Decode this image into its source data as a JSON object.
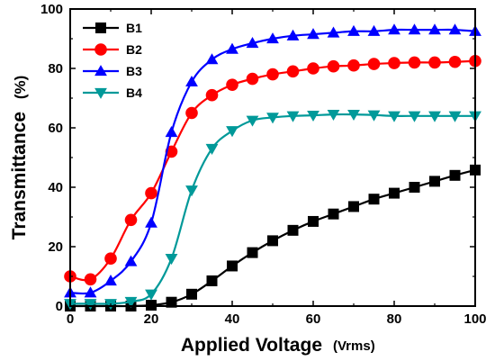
{
  "chart_data": {
    "type": "line",
    "title": "",
    "xlabel": "Applied Voltage",
    "xlabel_unit": "(Vrms)",
    "ylabel": "Transmittance",
    "ylabel_unit": "(%)",
    "xlim": [
      0,
      100
    ],
    "ylim": [
      0,
      100
    ],
    "x_ticks": [
      0,
      20,
      40,
      60,
      80,
      100
    ],
    "y_ticks": [
      0,
      20,
      40,
      60,
      80,
      100
    ],
    "x_tick_labels": [
      "0",
      "20",
      "40",
      "60",
      "80",
      "100"
    ],
    "y_tick_labels": [
      "0",
      "20",
      "40",
      "60",
      "80",
      "100"
    ],
    "grid": false,
    "legend_position": "top-left",
    "series": [
      {
        "name": "B1",
        "color": "#000000",
        "marker": "square",
        "x": [
          0,
          5,
          10,
          15,
          20,
          25,
          30,
          35,
          40,
          45,
          50,
          55,
          60,
          65,
          70,
          75,
          80,
          85,
          90,
          95,
          100
        ],
        "y": [
          0,
          0,
          0,
          0,
          0.3,
          1.3,
          4,
          8.5,
          13.5,
          18,
          22,
          25.5,
          28.5,
          31,
          33.5,
          36,
          38,
          40,
          42,
          44,
          45.8
        ]
      },
      {
        "name": "B2",
        "color": "#ff0000",
        "marker": "circle",
        "x": [
          0,
          5,
          10,
          15,
          20,
          25,
          30,
          35,
          40,
          45,
          50,
          55,
          60,
          65,
          70,
          75,
          80,
          85,
          90,
          95,
          100
        ],
        "y": [
          10,
          9,
          16,
          29,
          38,
          52,
          65,
          71,
          74.5,
          76.5,
          78,
          79,
          80,
          80.7,
          81,
          81.5,
          81.8,
          82,
          82,
          82.2,
          82.5
        ]
      },
      {
        "name": "B3",
        "color": "#0000ff",
        "marker": "triangle-up",
        "x": [
          0,
          5,
          10,
          15,
          20,
          25,
          30,
          35,
          40,
          45,
          50,
          55,
          60,
          65,
          70,
          75,
          80,
          85,
          90,
          95,
          100
        ],
        "y": [
          4.5,
          4.5,
          8.5,
          15,
          28,
          58.5,
          75.5,
          83,
          86.5,
          88.5,
          90,
          91,
          91.5,
          92,
          92.5,
          92.5,
          93,
          93,
          93,
          93,
          92.5
        ]
      },
      {
        "name": "B4",
        "color": "#009999",
        "marker": "triangle-down",
        "x": [
          0,
          5,
          10,
          15,
          20,
          25,
          30,
          35,
          40,
          45,
          50,
          55,
          60,
          65,
          70,
          75,
          80,
          85,
          90,
          95,
          100
        ],
        "y": [
          0.8,
          0.8,
          0.8,
          1.5,
          4,
          16,
          39,
          53,
          59,
          62.5,
          63.5,
          64,
          64.2,
          64.5,
          64.5,
          64.3,
          64,
          64,
          64,
          64,
          64
        ]
      }
    ]
  }
}
